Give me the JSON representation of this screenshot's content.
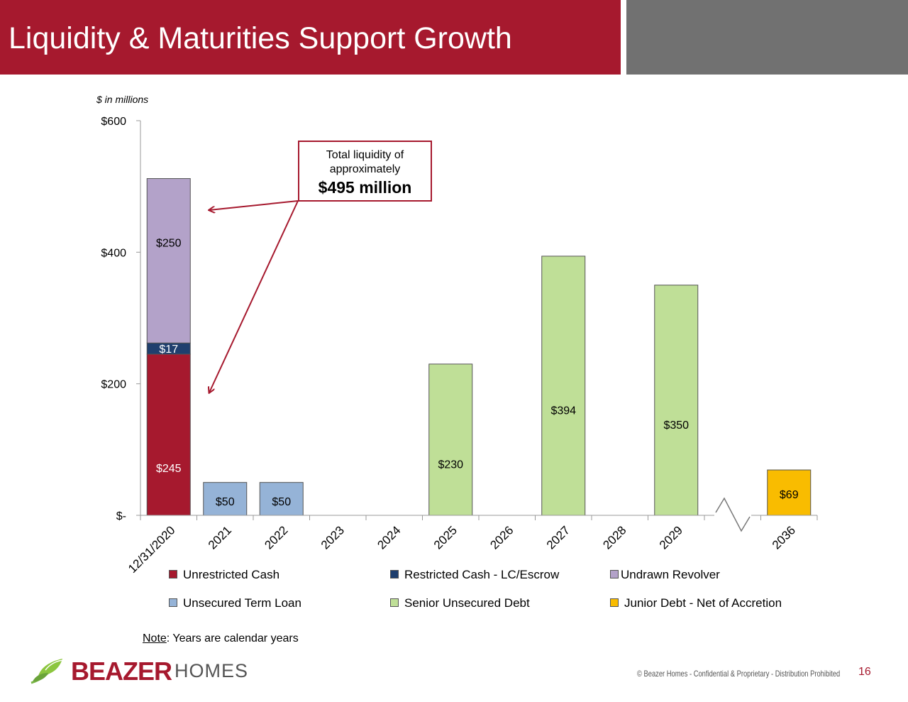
{
  "header": {
    "title": "Liquidity & Maturities Support Growth",
    "accent_color": "#a6192e",
    "side_color": "#717171"
  },
  "units_note": "$ in millions",
  "callout": {
    "line1": "Total liquidity of",
    "line2": "approximately",
    "line3": "$495 million"
  },
  "note": {
    "prefix": "Note",
    "text": ": Years are calendar years"
  },
  "logo": {
    "brand": "BEAZER",
    "suffix": "HOMES"
  },
  "footer": {
    "text": "© Beazer Homes - Confidential & Proprietary - Distribution Prohibited",
    "page": "16"
  },
  "chart_data": {
    "type": "bar",
    "stacked": true,
    "categories": [
      "12/31/2020",
      "2021",
      "2022",
      "2023",
      "2024",
      "2025",
      "2026",
      "2027",
      "2028",
      "2029",
      "",
      "2036"
    ],
    "axis_break_after": "2029",
    "ylim": [
      0,
      600
    ],
    "yticks": [
      0,
      200,
      400,
      600
    ],
    "ytick_labels": [
      "$-",
      "$200",
      "$400",
      "$600"
    ],
    "series": [
      {
        "name": "Unrestricted Cash",
        "color": "#a6192e",
        "values": [
          245,
          null,
          null,
          null,
          null,
          null,
          null,
          null,
          null,
          null,
          null,
          null
        ]
      },
      {
        "name": "Restricted Cash - LC/Escrow",
        "color": "#1f3f6e",
        "values": [
          17,
          null,
          null,
          null,
          null,
          null,
          null,
          null,
          null,
          null,
          null,
          null
        ]
      },
      {
        "name": "Undrawn Revolver",
        "color": "#b3a2c9",
        "values": [
          250,
          null,
          null,
          null,
          null,
          null,
          null,
          null,
          null,
          null,
          null,
          null
        ]
      },
      {
        "name": "Unsecured Term Loan",
        "color": "#95b3d7",
        "values": [
          null,
          50,
          50,
          null,
          null,
          null,
          null,
          null,
          null,
          null,
          null,
          null
        ]
      },
      {
        "name": "Senior Unsecured Debt",
        "color": "#bfdf97",
        "values": [
          null,
          null,
          null,
          null,
          null,
          230,
          null,
          394,
          null,
          350,
          null,
          null
        ]
      },
      {
        "name": "Junior Debt - Net of Accretion",
        "color": "#f9bc00",
        "values": [
          null,
          null,
          null,
          null,
          null,
          null,
          null,
          null,
          null,
          null,
          null,
          69
        ]
      }
    ],
    "legend_position": "bottom",
    "grid": false
  }
}
